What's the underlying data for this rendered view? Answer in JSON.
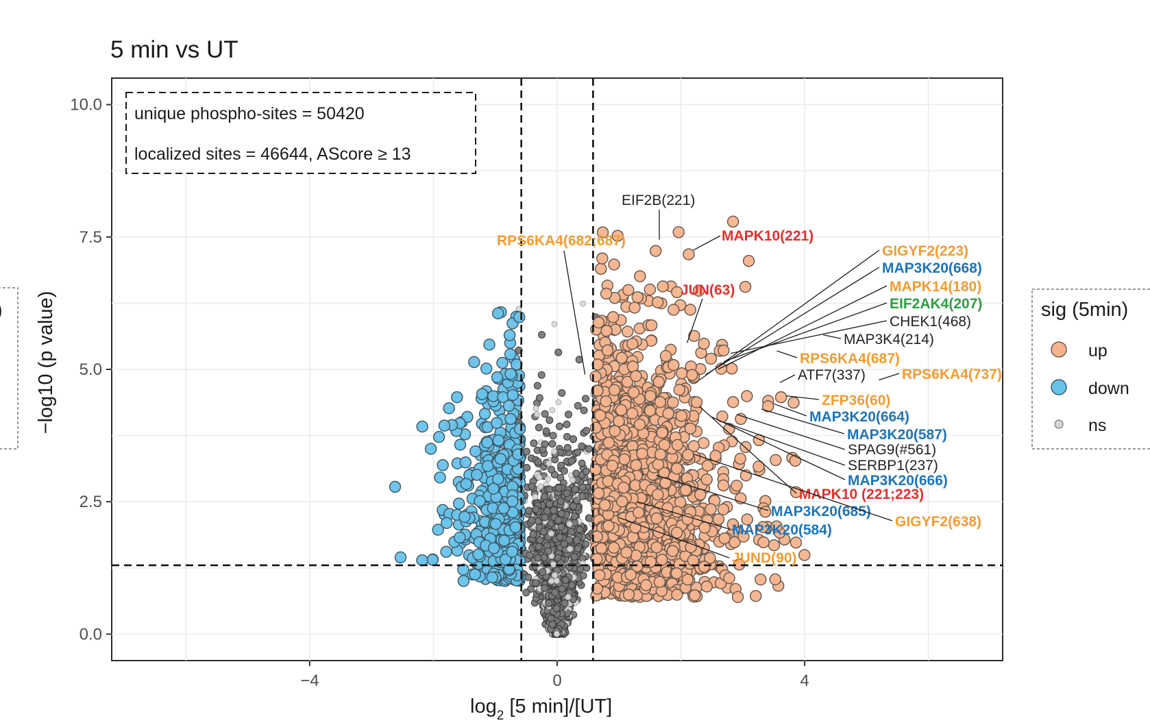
{
  "chart_data": {
    "type": "scatter",
    "subtype": "volcano",
    "title": "5 min vs UT",
    "xlabel": "log",
    "xlabel_sub": "2",
    "xlabel_rest": " [5 min]/[UT]",
    "ylabel": "−log10 (p value)",
    "xlim": [
      -7.2,
      7.2
    ],
    "ylim": [
      -0.5,
      10.5
    ],
    "x_ticks": [
      {
        "value": -4,
        "label": "−4"
      },
      {
        "value": 0,
        "label": "0"
      },
      {
        "value": 4,
        "label": "4"
      }
    ],
    "y_ticks": [
      {
        "value": 0,
        "label": "0.0"
      },
      {
        "value": 2.5,
        "label": "2.5"
      },
      {
        "value": 5,
        "label": "5.0"
      },
      {
        "value": 7.5,
        "label": "7.5"
      },
      {
        "value": 10,
        "label": "10.0"
      }
    ],
    "thresholds": {
      "fold_change": [
        -0.58,
        0.58
      ],
      "neg_log10_p": 1.3
    },
    "annotation_box": [
      "unique phospho-sites  = 50420",
      "localized sites = 46644, AScore ≥ 13"
    ],
    "legend": {
      "title": "sig (5min)",
      "position": "right",
      "items": [
        {
          "label": "up",
          "color": "#f5b48e"
        },
        {
          "label": "down",
          "color": "#67c2ea"
        },
        {
          "label": "ns",
          "color": "#d6d6d6"
        }
      ]
    },
    "colors": {
      "up": "#f5b48e",
      "down": "#67c2ea",
      "ns": "#7a7a7a",
      "axis_text": "#4d4d4d",
      "orange": "#f39c33",
      "blue": "#1f74b6",
      "red": "#e0322d",
      "green": "#2f9e44",
      "black": "#222222"
    },
    "series": [
      {
        "name": "up",
        "n_points": 1400,
        "x_range": [
          0.58,
          4.5
        ],
        "y_range": [
          0.7,
          7.8
        ]
      },
      {
        "name": "down",
        "n_points": 650,
        "x_range": [
          -2.5,
          -0.58
        ],
        "y_range": [
          1.0,
          6.6
        ]
      },
      {
        "name": "ns",
        "n_points": 2600,
        "x_range": [
          -0.58,
          0.58
        ],
        "y_range": [
          0.0,
          6.3
        ]
      }
    ],
    "labeled_points": [
      {
        "label": "EIF2B(221)",
        "x": 1.65,
        "y": 7.45,
        "color": "black",
        "bold": false
      },
      {
        "label": "RPS6KA4(682;687)",
        "x": 0.45,
        "y": 4.9,
        "color": "orange",
        "bold": true
      },
      {
        "label": "MAPK10(221)",
        "x": 2.2,
        "y": 7.25,
        "color": "red",
        "bold": true
      },
      {
        "label": "JUN(63)",
        "x": 2.1,
        "y": 5.5,
        "color": "red",
        "bold": true
      },
      {
        "label": "GIGYF2(223)",
        "x": 2.3,
        "y": 4.8,
        "color": "orange",
        "bold": true
      },
      {
        "label": "MAP3K20(668)",
        "x": 2.4,
        "y": 4.9,
        "color": "blue",
        "bold": true
      },
      {
        "label": "MAPK14(180)",
        "x": 2.6,
        "y": 5.0,
        "color": "orange",
        "bold": true
      },
      {
        "label": "EIF2AK4(207)",
        "x": 2.7,
        "y": 5.15,
        "color": "green",
        "bold": true
      },
      {
        "label": "CHEK1(468)",
        "x": 2.8,
        "y": 5.3,
        "color": "black",
        "bold": false
      },
      {
        "label": "MAP3K4(214)",
        "x": 4.3,
        "y": 5.65,
        "color": "black",
        "bold": false
      },
      {
        "label": "RPS6KA4(687)",
        "x": 3.55,
        "y": 5.35,
        "color": "orange",
        "bold": true
      },
      {
        "label": "ATF7(337)",
        "x": 3.6,
        "y": 4.75,
        "color": "black",
        "bold": false
      },
      {
        "label": "RPS6KA4(737)",
        "x": 5.2,
        "y": 4.8,
        "color": "orange",
        "bold": true
      },
      {
        "label": "ZFP36(60)",
        "x": 3.7,
        "y": 4.5,
        "color": "orange",
        "bold": true
      },
      {
        "label": "MAP3K20(664)",
        "x": 3.5,
        "y": 4.35,
        "color": "blue",
        "bold": true
      },
      {
        "label": "MAP3K20(587)",
        "x": 3.3,
        "y": 4.25,
        "color": "blue",
        "bold": true
      },
      {
        "label": "SPAG9(#561)",
        "x": 2.9,
        "y": 4.15,
        "color": "black",
        "bold": false
      },
      {
        "label": "SERBP1(237)",
        "x": 2.7,
        "y": 4.0,
        "color": "black",
        "bold": false
      },
      {
        "label": "MAP3K20(666)",
        "x": 2.5,
        "y": 4.1,
        "color": "blue",
        "bold": true
      },
      {
        "label": "MAPK10 (221;223)",
        "x": 2.3,
        "y": 4.3,
        "color": "red",
        "bold": true
      },
      {
        "label": "MAP3K20(685)",
        "x": 1.6,
        "y": 3.0,
        "color": "blue",
        "bold": true
      },
      {
        "label": "GIGYF2(638)",
        "x": 2.2,
        "y": 3.4,
        "color": "orange",
        "bold": true
      },
      {
        "label": "MAP3K20(584)",
        "x": 1.3,
        "y": 2.5,
        "color": "blue",
        "bold": true
      },
      {
        "label": "JUND(90)",
        "x": 1.0,
        "y": 2.2,
        "color": "orange",
        "bold": true
      }
    ]
  }
}
